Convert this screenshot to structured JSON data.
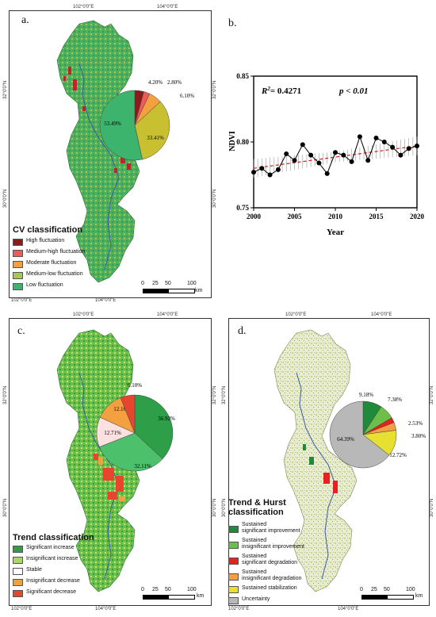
{
  "coords": {
    "lon_left": "102°0'0\"E",
    "lon_right": "104°0'0\"E",
    "lat_top": "32°0'0\"N",
    "lat_bottom": "30°0'0\"N"
  },
  "panel_a": {
    "label": "a.",
    "legend_title": "CV  classification",
    "legend": [
      {
        "label": "High fluctuation",
        "color": "#8b1a1a"
      },
      {
        "label": "Medium-high fluctuation",
        "color": "#ef5a5a"
      },
      {
        "label": "Moderate fluctuation",
        "color": "#f4a040"
      },
      {
        "label": "Medium-low fluctuation",
        "color": "#a8c84a"
      },
      {
        "label": "Low fluctuation",
        "color": "#3cb46e"
      }
    ],
    "scale_labels": [
      "0",
      "25",
      "50",
      "100"
    ],
    "scale_unit": "km"
  },
  "panel_b": {
    "label": "b.",
    "annotation_r2": "R",
    "annotation_r2_sup": "2",
    "annotation_r2_val": "= 0.4271",
    "annotation_p": "p < 0.01"
  },
  "panel_c": {
    "label": "c.",
    "legend_title": "Trend classification",
    "legend": [
      {
        "label": "Significant increase",
        "color": "#2e9e48"
      },
      {
        "label": "Insignificant increase",
        "color": "#a8d86a"
      },
      {
        "label": "Stable",
        "color": "#ffffff"
      },
      {
        "label": "Insignificant decrease",
        "color": "#f4a040"
      },
      {
        "label": "Significant decrease",
        "color": "#e8452e"
      }
    ],
    "scale_labels": [
      "0",
      "25",
      "50",
      "100"
    ],
    "scale_unit": "km"
  },
  "panel_d": {
    "label": "d.",
    "legend_title": "Trend & Hurst\nclassification",
    "legend_title_1": "Trend & Hurst",
    "legend_title_2": "classification",
    "legend": [
      {
        "label": "Sustained significant improvement",
        "line1": "Sustained",
        "line2": "significant improvement",
        "color": "#1f8a3a"
      },
      {
        "label": "Sustained insignificant improvement",
        "line1": "Sustained",
        "line2": "insignificant improvement",
        "color": "#6cc04a"
      },
      {
        "label": "Sustained significant degradation",
        "line1": "Sustained",
        "line2": "significant degradation",
        "color": "#e82020"
      },
      {
        "label": "Sustained insignificant degradation",
        "line1": "Sustained",
        "line2": "insignificant degradation",
        "color": "#f4a040"
      },
      {
        "label": "Sustained stabilization",
        "line1": "Sustained stabilization",
        "line2": "",
        "color": "#e8e030"
      },
      {
        "label": "Uncertainty",
        "line1": "Uncertainty",
        "line2": "",
        "color": "#b8b8b8"
      }
    ],
    "scale_labels": [
      "0",
      "25",
      "50",
      "100"
    ],
    "scale_unit": "km"
  },
  "chart_data": [
    {
      "type": "pie",
      "panel": "a",
      "slices": [
        {
          "label": "4.20%",
          "value": 4.2,
          "color": "#8b1a1a"
        },
        {
          "label": "2.80%",
          "value": 2.8,
          "color": "#ef5a5a"
        },
        {
          "label": "6.10%",
          "value": 6.1,
          "color": "#f4a040"
        },
        {
          "label": "33.41%",
          "value": 33.41,
          "color": "#c8c030"
        },
        {
          "label": "53.49%",
          "value": 53.49,
          "color": "#3cb46e"
        }
      ]
    },
    {
      "type": "line",
      "panel": "b",
      "title": "",
      "xlabel": "Year",
      "ylabel": "NDVI",
      "xlim": [
        2000,
        2020
      ],
      "ylim": [
        0.75,
        0.85
      ],
      "xticks": [
        2000,
        2005,
        2010,
        2015,
        2020
      ],
      "yticks": [
        0.75,
        0.8,
        0.85
      ],
      "x": [
        2000,
        2001,
        2002,
        2003,
        2004,
        2005,
        2006,
        2007,
        2008,
        2009,
        2010,
        2011,
        2012,
        2013,
        2014,
        2015,
        2016,
        2017,
        2018,
        2019,
        2020
      ],
      "y": [
        0.777,
        0.78,
        0.775,
        0.779,
        0.791,
        0.786,
        0.798,
        0.79,
        0.784,
        0.776,
        0.792,
        0.79,
        0.785,
        0.804,
        0.786,
        0.803,
        0.8,
        0.796,
        0.79,
        0.795,
        0.797
      ],
      "trend": {
        "start": 0.78,
        "end": 0.797
      }
    },
    {
      "type": "pie",
      "panel": "c",
      "slices": [
        {
          "label": "36.92%",
          "value": 36.92,
          "color": "#2e9e48"
        },
        {
          "label": "32.11%",
          "value": 32.11,
          "color": "#4cc06a"
        },
        {
          "label": "12.71%",
          "value": 12.71,
          "color": "#fde0e0"
        },
        {
          "label": "12.16%",
          "value": 12.16,
          "color": "#f4a040"
        },
        {
          "label": "6.10%",
          "value": 6.1,
          "color": "#e8452e"
        }
      ]
    },
    {
      "type": "pie",
      "panel": "d",
      "slices": [
        {
          "label": "9.18%",
          "value": 9.18,
          "color": "#1f8a3a"
        },
        {
          "label": "7.38%",
          "value": 7.38,
          "color": "#6cc04a"
        },
        {
          "label": "2.53%",
          "value": 2.53,
          "color": "#e82020"
        },
        {
          "label": "3.80%",
          "value": 3.8,
          "color": "#f4a040"
        },
        {
          "label": "12.72%",
          "value": 12.72,
          "color": "#e8e030"
        },
        {
          "label": "64.39%",
          "value": 64.39,
          "color": "#b8b8b8"
        }
      ]
    }
  ]
}
